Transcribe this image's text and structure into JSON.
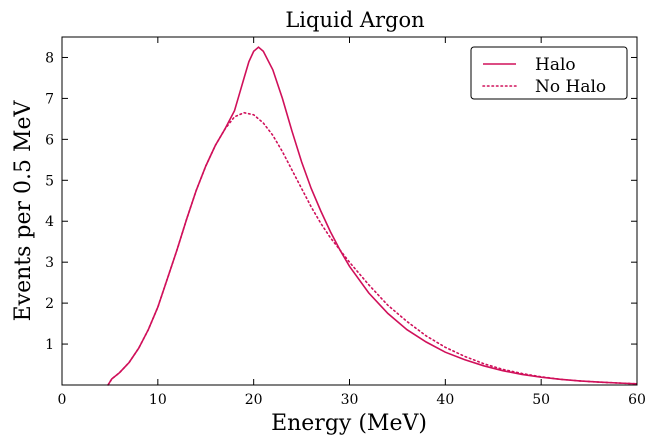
{
  "chart_data": {
    "type": "line",
    "title": "Liquid Argon",
    "xlabel": "Energy (MeV)",
    "ylabel": "Events per 0.5 MeV",
    "xlim": [
      0,
      60
    ],
    "ylim": [
      0,
      8.5
    ],
    "x_ticks": [
      "0",
      "10",
      "20",
      "30",
      "40",
      "50",
      "60"
    ],
    "y_ticks": [
      "1",
      "2",
      "3",
      "4",
      "5",
      "6",
      "7",
      "8"
    ],
    "legend_position": "top-right",
    "line_color": "#d0105a",
    "series": [
      {
        "name": "Halo",
        "style": "solid",
        "points": [
          [
            4.8,
            0
          ],
          [
            5.2,
            0.15
          ],
          [
            6,
            0.3
          ],
          [
            7,
            0.55
          ],
          [
            8,
            0.9
          ],
          [
            9,
            1.35
          ],
          [
            10,
            1.9
          ],
          [
            11,
            2.6
          ],
          [
            12,
            3.3
          ],
          [
            13,
            4.05
          ],
          [
            14,
            4.75
          ],
          [
            15,
            5.35
          ],
          [
            16,
            5.85
          ],
          [
            17,
            6.25
          ],
          [
            18,
            6.7
          ],
          [
            18.5,
            7.1
          ],
          [
            19,
            7.5
          ],
          [
            19.5,
            7.9
          ],
          [
            20,
            8.15
          ],
          [
            20.5,
            8.25
          ],
          [
            21,
            8.15
          ],
          [
            22,
            7.7
          ],
          [
            23,
            7.0
          ],
          [
            24,
            6.2
          ],
          [
            25,
            5.45
          ],
          [
            26,
            4.8
          ],
          [
            27,
            4.25
          ],
          [
            28,
            3.75
          ],
          [
            29,
            3.3
          ],
          [
            30,
            2.9
          ],
          [
            32,
            2.25
          ],
          [
            34,
            1.75
          ],
          [
            36,
            1.35
          ],
          [
            38,
            1.05
          ],
          [
            40,
            0.8
          ],
          [
            42,
            0.62
          ],
          [
            44,
            0.47
          ],
          [
            46,
            0.35
          ],
          [
            48,
            0.26
          ],
          [
            50,
            0.19
          ],
          [
            52,
            0.14
          ],
          [
            54,
            0.1
          ],
          [
            56,
            0.07
          ],
          [
            58,
            0.05
          ],
          [
            60,
            0.03
          ]
        ]
      },
      {
        "name": "No Halo",
        "style": "dotted",
        "points": [
          [
            4.8,
            0
          ],
          [
            5.2,
            0.15
          ],
          [
            6,
            0.3
          ],
          [
            7,
            0.55
          ],
          [
            8,
            0.9
          ],
          [
            9,
            1.35
          ],
          [
            10,
            1.9
          ],
          [
            11,
            2.6
          ],
          [
            12,
            3.3
          ],
          [
            13,
            4.05
          ],
          [
            14,
            4.75
          ],
          [
            15,
            5.35
          ],
          [
            16,
            5.85
          ],
          [
            17,
            6.25
          ],
          [
            18,
            6.55
          ],
          [
            19,
            6.65
          ],
          [
            20,
            6.6
          ],
          [
            21,
            6.4
          ],
          [
            22,
            6.1
          ],
          [
            23,
            5.7
          ],
          [
            24,
            5.25
          ],
          [
            25,
            4.8
          ],
          [
            26,
            4.35
          ],
          [
            27,
            3.95
          ],
          [
            28,
            3.6
          ],
          [
            29,
            3.3
          ],
          [
            30,
            3.0
          ],
          [
            32,
            2.45
          ],
          [
            34,
            1.95
          ],
          [
            36,
            1.55
          ],
          [
            38,
            1.2
          ],
          [
            40,
            0.92
          ],
          [
            42,
            0.7
          ],
          [
            44,
            0.52
          ],
          [
            46,
            0.38
          ],
          [
            48,
            0.28
          ],
          [
            50,
            0.2
          ],
          [
            52,
            0.14
          ],
          [
            54,
            0.1
          ],
          [
            56,
            0.07
          ],
          [
            58,
            0.05
          ],
          [
            60,
            0.03
          ]
        ]
      }
    ]
  }
}
